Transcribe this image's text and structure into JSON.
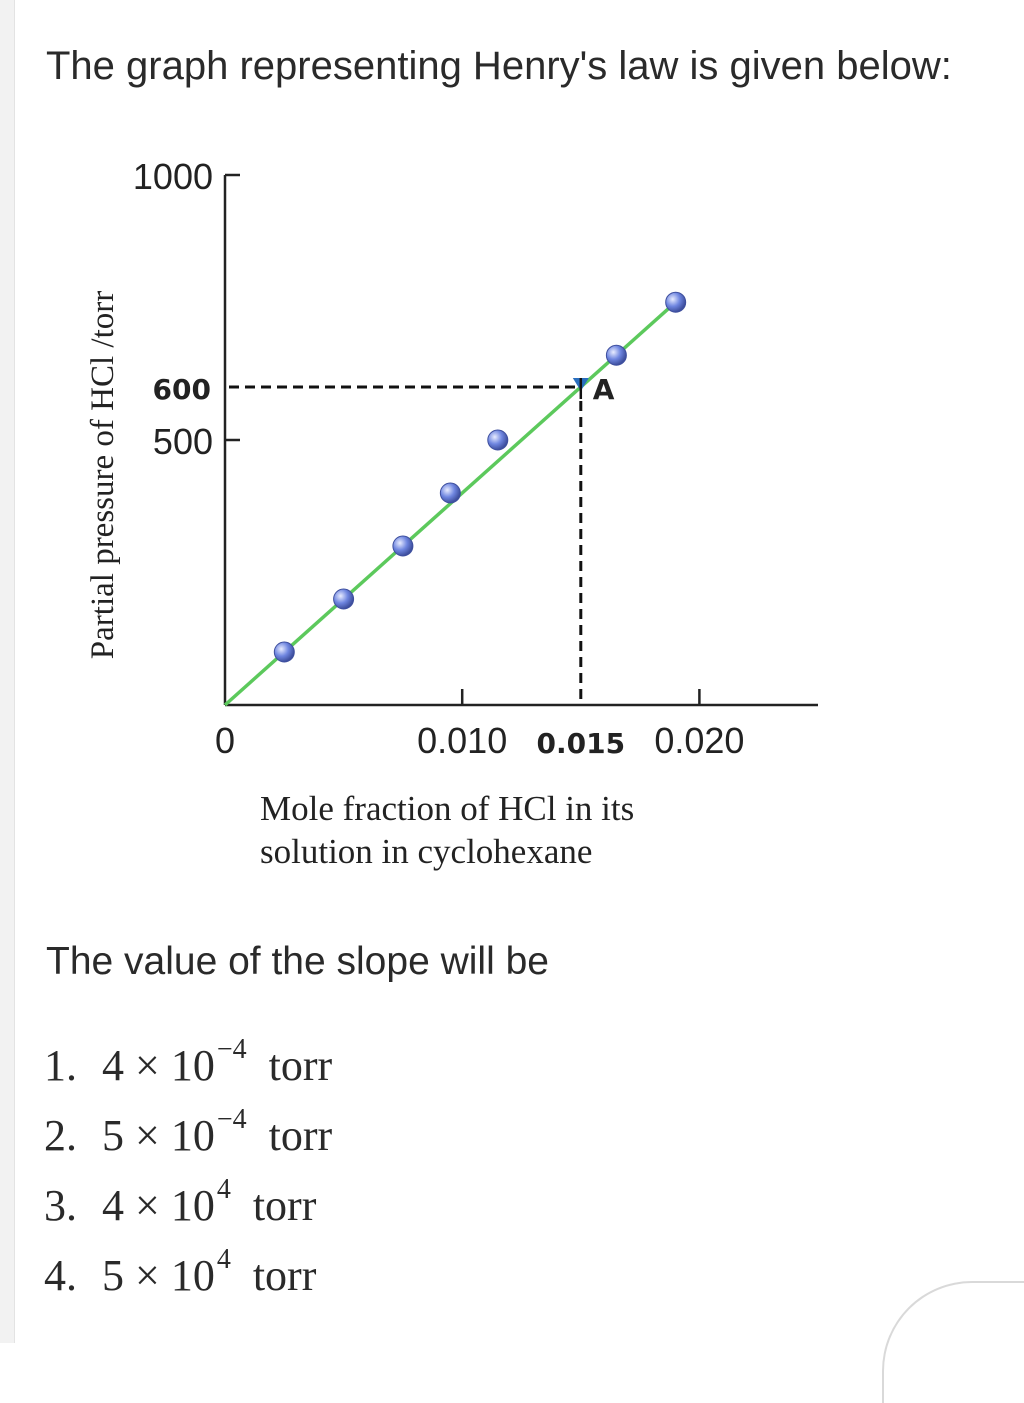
{
  "question": "The graph representing Henry's law is given below:",
  "prompt": "The value of the slope will be",
  "options": [
    {
      "number": "1.",
      "mantissa": "4 × 10",
      "exponent": "−4",
      "unit": "torr"
    },
    {
      "number": "2.",
      "mantissa": "5 × 10",
      "exponent": "−4",
      "unit": "torr"
    },
    {
      "number": "3.",
      "mantissa": "4 × 10",
      "exponent": "4",
      "unit": "torr"
    },
    {
      "number": "4.",
      "mantissa": "5 × 10",
      "exponent": "4",
      "unit": "torr"
    }
  ],
  "chart_data": {
    "type": "scatter",
    "title": "",
    "xlabel_line1": "Mole fraction of HCl in its",
    "xlabel_line2": "solution in cyclohexane",
    "ylabel": "Partial pressure of HCl /torr",
    "xlim": [
      0,
      0.025
    ],
    "ylim": [
      0,
      1000
    ],
    "x_ticks": [
      {
        "value": 0,
        "label": "0"
      },
      {
        "value": 0.01,
        "label": "0.010"
      },
      {
        "value": 0.015,
        "label": "0.015"
      },
      {
        "value": 0.02,
        "label": "0.020"
      }
    ],
    "y_ticks": [
      {
        "value": 500,
        "label": "500"
      },
      {
        "value": 1000,
        "label": "1000"
      }
    ],
    "highlight": {
      "x": 0.015,
      "y": 600,
      "label": "A",
      "y_label": "600",
      "x_label": "0.015"
    },
    "series": [
      {
        "x": [
          0.0025,
          0.005,
          0.0075,
          0.0095,
          0.0115,
          0.0165,
          0.019
        ],
        "y": [
          100,
          200,
          300,
          400,
          500,
          660,
          760
        ]
      }
    ],
    "line": {
      "x": [
        0,
        0.019
      ],
      "y": [
        0,
        760
      ]
    },
    "colors": {
      "line": "#5cc95c",
      "point": "#6f86e0",
      "axis": "#222222"
    }
  }
}
